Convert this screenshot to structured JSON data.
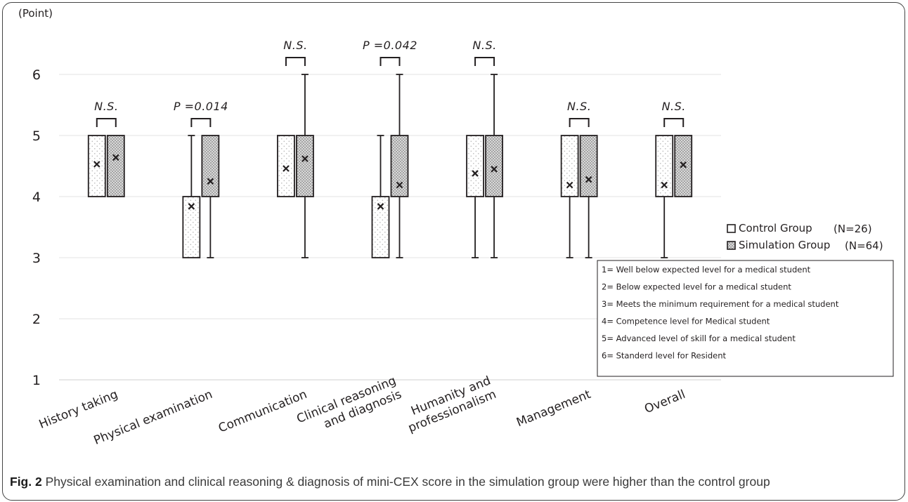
{
  "chart_data": {
    "type": "box",
    "y_unit_label": "(Point)",
    "ylim": [
      1,
      6.5
    ],
    "yticks": [
      "1",
      "2",
      "3",
      "4",
      "5",
      "6"
    ],
    "grid": true,
    "categories": [
      "History taking",
      "Physical examination",
      "Communication",
      "Clinical reasoning and diagnosis",
      "Humanity and professionalism",
      "Management",
      "Overall"
    ],
    "category_labels": [
      [
        "History taking"
      ],
      [
        "Physical examination"
      ],
      [
        "Communication"
      ],
      [
        "Clinical reasoning",
        "and diagnosis"
      ],
      [
        "Humanity and",
        "professionalism"
      ],
      [
        "Management"
      ],
      [
        "Overall"
      ]
    ],
    "series": [
      {
        "name": "Control Group",
        "n_label": "(N=26)",
        "pattern": "dots",
        "boxes": [
          {
            "min": 4,
            "q1": 4,
            "median": 4,
            "q3": 5,
            "max": 5,
            "mean": 4.53
          },
          {
            "min": 3,
            "q1": 3,
            "median": 4,
            "q3": 4,
            "max": 5,
            "mean": 3.84
          },
          {
            "min": 4,
            "q1": 4,
            "median": 4,
            "q3": 5,
            "max": 5,
            "mean": 4.46
          },
          {
            "min": 3,
            "q1": 3,
            "median": 4,
            "q3": 4,
            "max": 5,
            "mean": 3.84
          },
          {
            "min": 3,
            "q1": 4,
            "median": 4,
            "q3": 5,
            "max": 5,
            "mean": 4.38
          },
          {
            "min": 3,
            "q1": 4,
            "median": 4,
            "q3": 5,
            "max": 5,
            "mean": 4.19
          },
          {
            "min": 3,
            "q1": 4,
            "median": 4,
            "q3": 5,
            "max": 5,
            "mean": 4.19
          }
        ]
      },
      {
        "name": "Simulation Group",
        "n_label": "(N=64)",
        "pattern": "crosshatch",
        "boxes": [
          {
            "min": 4,
            "q1": 4,
            "median": 5,
            "q3": 5,
            "max": 5,
            "mean": 4.64
          },
          {
            "min": 3,
            "q1": 4,
            "median": 4,
            "q3": 5,
            "max": 5,
            "mean": 4.25
          },
          {
            "min": 3,
            "q1": 4,
            "median": 5,
            "q3": 5,
            "max": 6,
            "mean": 4.62
          },
          {
            "min": 3,
            "q1": 4,
            "median": 4,
            "q3": 5,
            "max": 6,
            "mean": 4.19
          },
          {
            "min": 3,
            "q1": 4,
            "median": 4,
            "q3": 5,
            "max": 6,
            "mean": 4.45
          },
          {
            "min": 3,
            "q1": 4,
            "median": 4,
            "q3": 5,
            "max": 5,
            "mean": 4.28
          },
          {
            "min": 4,
            "q1": 4,
            "median": 5,
            "q3": 5,
            "max": 5,
            "mean": 4.52
          }
        ]
      }
    ],
    "significance": [
      "N.S.",
      "P =0.014",
      "N.S.",
      "P =0.042",
      "N.S.",
      "N.S.",
      "N.S."
    ],
    "scale_legend": [
      "1= Well below expected level for a medical student",
      "2= Below expected level for a medical student",
      "3= Meets the minimum requirement for a medical student",
      "4= Competence level for Medical student",
      "5= Advanced level of skill for a medical student",
      "6= Standerd level for Resident"
    ],
    "colors": {
      "box_fill": "#ffffff",
      "box_stroke": "#231f20",
      "grid": "#e3e3e3",
      "dots": "#b8b8b8",
      "hatch": "#909090"
    }
  },
  "caption": {
    "label": "Fig. 2",
    "text": "Physical examination and clinical reasoning & diagnosis of mini-CEX score in the simulation group were higher than the control group"
  }
}
